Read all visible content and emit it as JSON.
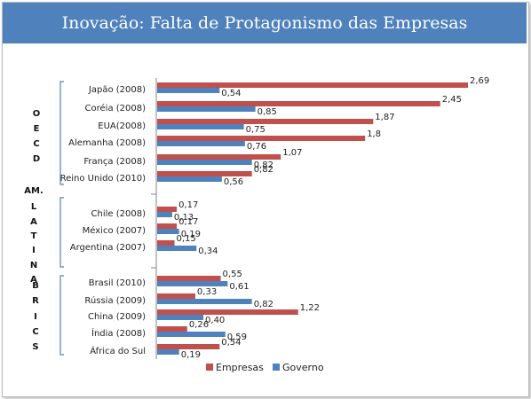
{
  "slide": {
    "title": "Inovação: Falta de Protagonismo das Empresas"
  },
  "groups": [
    {
      "label": "O E C D",
      "letters": [
        "O",
        "E",
        "C",
        "D"
      ]
    },
    {
      "label": "AM. L A T I N A",
      "letters": [
        "AM.",
        "L",
        "A",
        "T",
        "I",
        "N",
        "A"
      ]
    },
    {
      "label": "B R I C S",
      "letters": [
        "B",
        "R",
        "I",
        "C",
        "S"
      ]
    }
  ],
  "colors": {
    "title_bar": "#4f81bd",
    "empresas": "#c0504d",
    "governo": "#4f81bd"
  },
  "chart_data": {
    "type": "bar",
    "orientation": "horizontal",
    "categories": [
      "Japão (2008)",
      "Coréia (2008)",
      "EUA(2008)",
      "Alemanha (2008)",
      "França (2008)",
      "Reino Unido (2010)",
      "Chile (2008)",
      "México (2007)",
      "Argentina (2007)",
      "Brasil (2010)",
      "Rússia (2009)",
      "China (2009)",
      "Índia (2008)",
      "África do Sul"
    ],
    "series": [
      {
        "name": "Empresas",
        "color": "#c0504d",
        "values": [
          2.69,
          2.45,
          1.87,
          1.8,
          1.07,
          0.82,
          0.17,
          0.17,
          0.15,
          0.55,
          0.33,
          1.22,
          0.26,
          0.54
        ],
        "labels": [
          "2,69",
          "2,45",
          "1,87",
          "1,8",
          "1,07",
          "0,82",
          "0,17",
          "0,17",
          "0,15",
          "0,55",
          "0,33",
          "1,22",
          "0,26",
          "0,54"
        ]
      },
      {
        "name": "Governo",
        "color": "#4f81bd",
        "values": [
          0.54,
          0.85,
          0.75,
          0.76,
          0.82,
          0.56,
          0.13,
          0.19,
          0.34,
          0.61,
          0.82,
          0.4,
          0.59,
          0.19
        ],
        "labels": [
          "0,54",
          "0,85",
          "0,75",
          "0,76",
          "0,82",
          "0,56",
          "0,13",
          "0,19",
          "0,34",
          "0,61",
          "0,82",
          "0,40",
          "0,59",
          "0,19"
        ]
      }
    ],
    "legend_position": "bottom",
    "grid": false,
    "xlim": [
      0,
      2.7
    ]
  }
}
